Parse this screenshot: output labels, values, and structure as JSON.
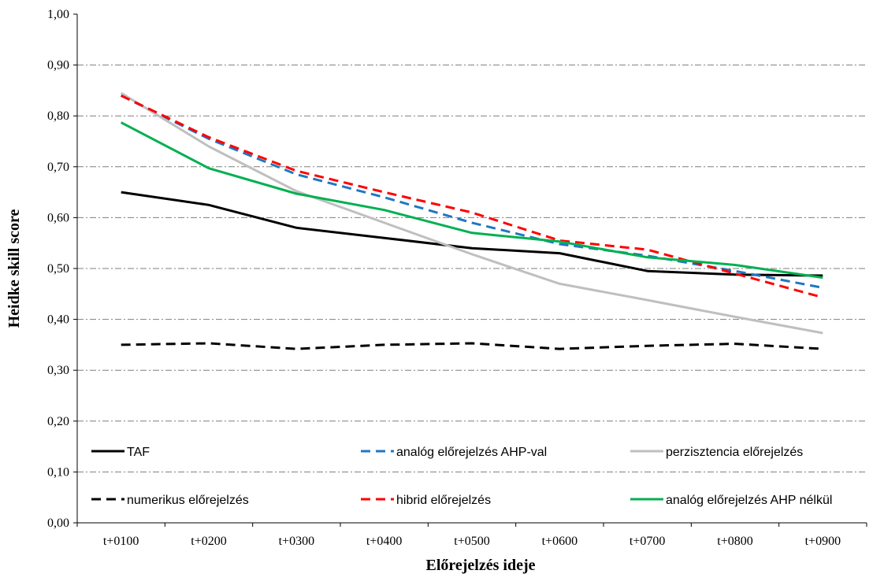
{
  "chart_data": {
    "type": "line",
    "xlabel": "Előrejelzés ideje",
    "ylabel": "Heidke skill score",
    "categories": [
      "t+0100",
      "t+0200",
      "t+0300",
      "t+0400",
      "t+0500",
      "t+0600",
      "t+0700",
      "t+0800",
      "t+0900"
    ],
    "ylim": [
      0,
      1
    ],
    "y_tick_labels": [
      "0,00",
      "0,10",
      "0,20",
      "0,30",
      "0,40",
      "0,50",
      "0,60",
      "0,70",
      "0,80",
      "0,90",
      "1,00"
    ],
    "grid": "horizontal dash-dot",
    "legend": "inside, bottom, two rows",
    "series": [
      {
        "name": "TAF",
        "color": "#000000",
        "dash": "solid",
        "values": [
          0.65,
          0.625,
          0.58,
          0.56,
          0.54,
          0.53,
          0.495,
          0.488,
          0.486
        ]
      },
      {
        "name": "analóg előrejelzés AHP-val",
        "color": "#1f77c4",
        "dash": "dashed",
        "values": [
          0.84,
          0.755,
          0.685,
          0.64,
          0.59,
          0.548,
          0.525,
          0.495,
          0.462
        ]
      },
      {
        "name": "perzisztencia előrejelzés",
        "color": "#bfbfbf",
        "dash": "solid",
        "values": [
          0.845,
          0.74,
          0.652,
          0.59,
          0.528,
          0.47,
          0.438,
          0.405,
          0.373
        ]
      },
      {
        "name": "numerikus előrejelzés",
        "color": "#000000",
        "dash": "dashed",
        "values": [
          0.35,
          0.353,
          0.342,
          0.35,
          0.353,
          0.342,
          0.348,
          0.352,
          0.342
        ]
      },
      {
        "name": "hibrid előrejelzés",
        "color": "#ff0000",
        "dash": "dashed",
        "values": [
          0.84,
          0.758,
          0.692,
          0.65,
          0.61,
          0.555,
          0.537,
          0.49,
          0.443
        ]
      },
      {
        "name": "analóg előrejelzés AHP nélkül",
        "color": "#00b050",
        "dash": "solid",
        "values": [
          0.787,
          0.697,
          0.647,
          0.615,
          0.57,
          0.553,
          0.522,
          0.507,
          0.482
        ]
      }
    ]
  }
}
